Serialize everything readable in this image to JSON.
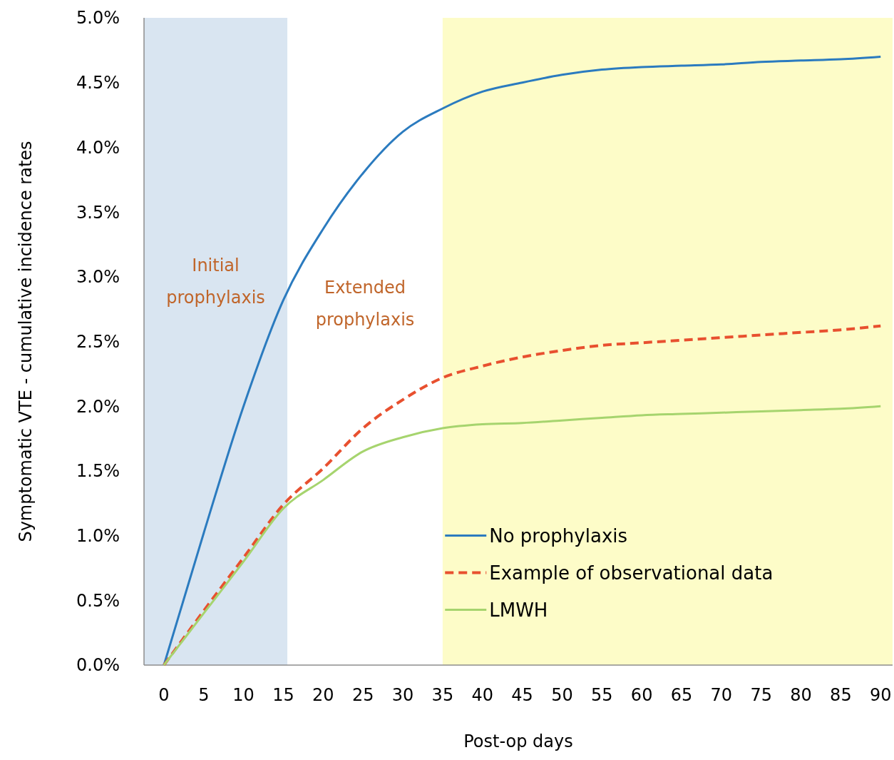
{
  "chart_data": {
    "type": "line",
    "xlabel": "Post-op days",
    "ylabel": "Symptomatic VTE - cumulative incidence rates",
    "x": [
      0,
      5,
      10,
      15,
      20,
      25,
      30,
      35,
      40,
      45,
      50,
      55,
      60,
      65,
      70,
      75,
      80,
      85,
      90
    ],
    "series": [
      {
        "name": "No prophylaxis",
        "color": "#2b7bbf",
        "line_style": "solid",
        "values": [
          0,
          1.02,
          2.0,
          2.82,
          3.37,
          3.8,
          4.12,
          4.3,
          4.43,
          4.5,
          4.56,
          4.6,
          4.62,
          4.63,
          4.64,
          4.66,
          4.67,
          4.68,
          4.7
        ]
      },
      {
        "name": "Example of observational data",
        "color": "#e8502f",
        "line_style": "dashed",
        "values": [
          0,
          0.42,
          0.83,
          1.24,
          1.52,
          1.83,
          2.05,
          2.22,
          2.31,
          2.38,
          2.43,
          2.47,
          2.49,
          2.51,
          2.53,
          2.55,
          2.57,
          2.59,
          2.62
        ]
      },
      {
        "name": "LMWH",
        "color": "#a6d46e",
        "line_style": "solid",
        "values": [
          0,
          0.4,
          0.8,
          1.21,
          1.43,
          1.65,
          1.76,
          1.83,
          1.86,
          1.87,
          1.89,
          1.91,
          1.93,
          1.94,
          1.95,
          1.96,
          1.97,
          1.98,
          2.0
        ]
      }
    ],
    "xlim": [
      -2.5,
      91.5
    ],
    "xticks": [
      0,
      5,
      10,
      15,
      20,
      25,
      30,
      35,
      40,
      45,
      50,
      55,
      60,
      65,
      70,
      75,
      80,
      85,
      90
    ],
    "ylim": [
      0,
      5
    ],
    "yticks": [
      {
        "value": 0,
        "label": "0.0%"
      },
      {
        "value": 0.5,
        "label": "0.5%"
      },
      {
        "value": 1,
        "label": "1.0%"
      },
      {
        "value": 1.5,
        "label": "1.5%"
      },
      {
        "value": 2,
        "label": "2.0%"
      },
      {
        "value": 2.5,
        "label": "2.5%"
      },
      {
        "value": 3,
        "label": "3.0%"
      },
      {
        "value": 3.5,
        "label": "3.5%"
      },
      {
        "value": 4,
        "label": "4.0%"
      },
      {
        "value": 4.5,
        "label": "4.5%"
      },
      {
        "value": 5,
        "label": "5.0%"
      }
    ],
    "bands": [
      {
        "axis": "x",
        "from": -2.5,
        "to": 15.5,
        "label": "Initial prophylaxis",
        "color": "#d9e5f1"
      },
      {
        "axis": "x",
        "from": 35,
        "to": 91.5,
        "color": "#fdfcc8"
      }
    ],
    "annotations": [
      "Extended prophylaxis"
    ],
    "grid": false,
    "legend": "bottom right",
    "marker": "none"
  }
}
